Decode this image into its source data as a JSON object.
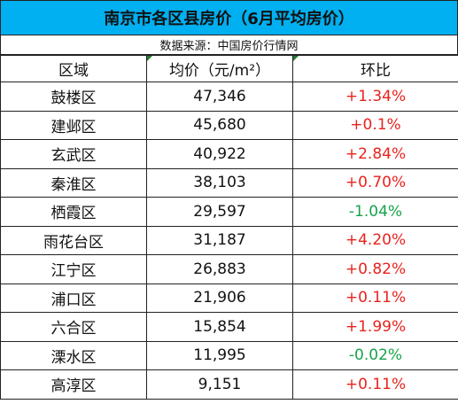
{
  "title": "南京市各区县房价（6月平均房价）",
  "source": "数据来源：中国房价行情网",
  "headers": {
    "district": "区域",
    "price": "均价（元/m²）",
    "change": "环比"
  },
  "rows": [
    {
      "district": "鼓楼区",
      "price": "47,346",
      "change": "+1.34%",
      "trend": "up"
    },
    {
      "district": "建邺区",
      "price": "45,680",
      "change": "+0.1%",
      "trend": "up"
    },
    {
      "district": "玄武区",
      "price": "40,922",
      "change": "+2.84%",
      "trend": "up"
    },
    {
      "district": "秦淮区",
      "price": "38,103",
      "change": "+0.70%",
      "trend": "up"
    },
    {
      "district": "栖霞区",
      "price": "29,597",
      "change": "-1.04%",
      "trend": "down"
    },
    {
      "district": "雨花台区",
      "price": "31,187",
      "change": "+4.20%",
      "trend": "up"
    },
    {
      "district": "江宁区",
      "price": "26,883",
      "change": "+0.82%",
      "trend": "up"
    },
    {
      "district": "浦口区",
      "price": "21,906",
      "change": "+0.11%",
      "trend": "up"
    },
    {
      "district": "六合区",
      "price": "15,854",
      "change": "+1.99%",
      "trend": "up"
    },
    {
      "district": "溧水区",
      "price": "11,995",
      "change": "-0.02%",
      "trend": "down"
    },
    {
      "district": "高淳区",
      "price": "9,151",
      "change": "+0.11%",
      "trend": "up"
    }
  ],
  "colors": {
    "title_bg": "#00b0f0",
    "up": "#e8231e",
    "down": "#16a34a"
  }
}
